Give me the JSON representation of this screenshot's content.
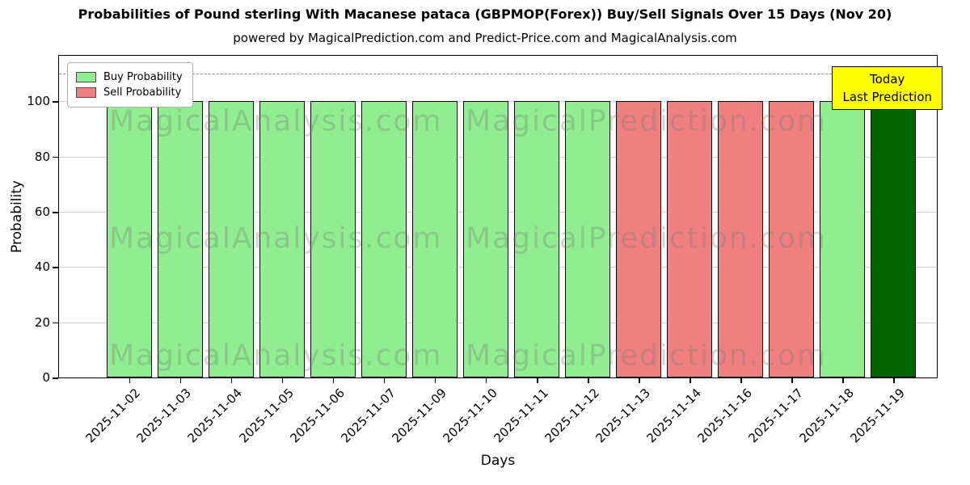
{
  "chart_data": {
    "type": "bar",
    "title": "Probabilities of Pound sterling With Macanese pataca (GBPMOP(Forex)) Buy/Sell Signals Over 15 Days (Nov 20)",
    "subtitle": "powered by MagicalPrediction.com and Predict-Price.com and MagicalAnalysis.com",
    "xlabel": "Days",
    "ylabel": "Probability",
    "ylim": [
      0,
      116.5
    ],
    "yticks": [
      0,
      20,
      40,
      60,
      80,
      100
    ],
    "grid": true,
    "dashed_line_y": 110,
    "legend": {
      "position": "upper-left",
      "items": [
        {
          "label": "Buy Probability",
          "color": "#90EE90"
        },
        {
          "label": "Sell Probability",
          "color": "#F08080"
        }
      ]
    },
    "colors": {
      "buy": "#90EE90",
      "sell": "#F08080",
      "last": "#006400"
    },
    "annotation": {
      "line1": "Today",
      "line2": "Last Prediction",
      "bg": "#FFFF00"
    },
    "watermarks": [
      "MagicalAnalysis.com",
      "MagicalPrediction.com"
    ],
    "bars": [
      {
        "date": "2025-11-02",
        "value": 100,
        "type": "buy"
      },
      {
        "date": "2025-11-03",
        "value": 100,
        "type": "buy"
      },
      {
        "date": "2025-11-04",
        "value": 100,
        "type": "buy"
      },
      {
        "date": "2025-11-05",
        "value": 100,
        "type": "buy"
      },
      {
        "date": "2025-11-06",
        "value": 100,
        "type": "buy"
      },
      {
        "date": "2025-11-07",
        "value": 100,
        "type": "buy"
      },
      {
        "date": "2025-11-09",
        "value": 100,
        "type": "buy"
      },
      {
        "date": "2025-11-10",
        "value": 100,
        "type": "buy"
      },
      {
        "date": "2025-11-11",
        "value": 100,
        "type": "buy"
      },
      {
        "date": "2025-11-12",
        "value": 100,
        "type": "buy"
      },
      {
        "date": "2025-11-13",
        "value": 100,
        "type": "sell"
      },
      {
        "date": "2025-11-14",
        "value": 100,
        "type": "sell"
      },
      {
        "date": "2025-11-16",
        "value": 100,
        "type": "sell"
      },
      {
        "date": "2025-11-17",
        "value": 100,
        "type": "sell"
      },
      {
        "date": "2025-11-18",
        "value": 100,
        "type": "buy"
      },
      {
        "date": "2025-11-19",
        "value": 100,
        "type": "last"
      }
    ]
  }
}
